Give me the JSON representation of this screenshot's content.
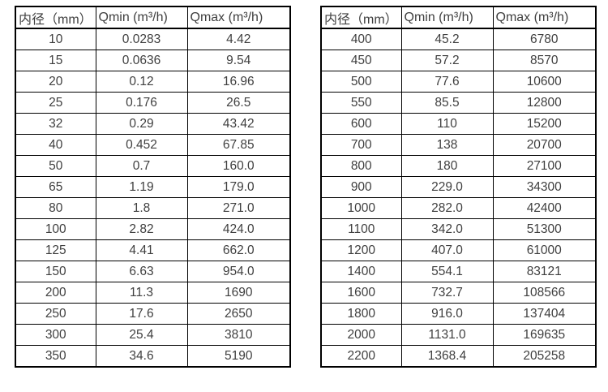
{
  "page": {
    "background_color": "#ffffff",
    "border_color": "#000000",
    "text_color": "#3f3f3f"
  },
  "tables": [
    {
      "name": "flow-rates-small-diameters",
      "headers": [
        "内径（mm）",
        "Qmin (m³/h)",
        "Qmax (m³/h)"
      ],
      "rows": [
        [
          "10",
          "0.0283",
          "4.42"
        ],
        [
          "15",
          "0.0636",
          "9.54"
        ],
        [
          "20",
          "0.12",
          "16.96"
        ],
        [
          "25",
          "0.176",
          "26.5"
        ],
        [
          "32",
          "0.29",
          "43.42"
        ],
        [
          "40",
          "0.452",
          "67.85"
        ],
        [
          "50",
          "0.7",
          "160.0"
        ],
        [
          "65",
          "1.19",
          "179.0"
        ],
        [
          "80",
          "1.8",
          "271.0"
        ],
        [
          "100",
          "2.82",
          "424.0"
        ],
        [
          "125",
          "4.41",
          "662.0"
        ],
        [
          "150",
          "6.63",
          "954.0"
        ],
        [
          "200",
          "11.3",
          "1690"
        ],
        [
          "250",
          "17.6",
          "2650"
        ],
        [
          "300",
          "25.4",
          "3810"
        ],
        [
          "350",
          "34.6",
          "5190"
        ]
      ]
    },
    {
      "name": "flow-rates-large-diameters",
      "headers": [
        "内径（mm）",
        "Qmin (m³/h)",
        "Qmax (m³/h)"
      ],
      "rows": [
        [
          "400",
          "45.2",
          "6780"
        ],
        [
          "450",
          "57.2",
          "8570"
        ],
        [
          "500",
          "77.6",
          "10600"
        ],
        [
          "550",
          "85.5",
          "12800"
        ],
        [
          "600",
          "110",
          "15200"
        ],
        [
          "700",
          "138",
          "20700"
        ],
        [
          "800",
          "180",
          "27100"
        ],
        [
          "900",
          "229.0",
          "34300"
        ],
        [
          "1000",
          "282.0",
          "42400"
        ],
        [
          "1100",
          "342.0",
          "51300"
        ],
        [
          "1200",
          "407.0",
          "61000"
        ],
        [
          "1400",
          "554.1",
          "83121"
        ],
        [
          "1600",
          "732.7",
          "108566"
        ],
        [
          "1800",
          "916.0",
          "137404"
        ],
        [
          "2000",
          "1131.0",
          "169635"
        ],
        [
          "2200",
          "1368.4",
          "205258"
        ]
      ]
    }
  ]
}
